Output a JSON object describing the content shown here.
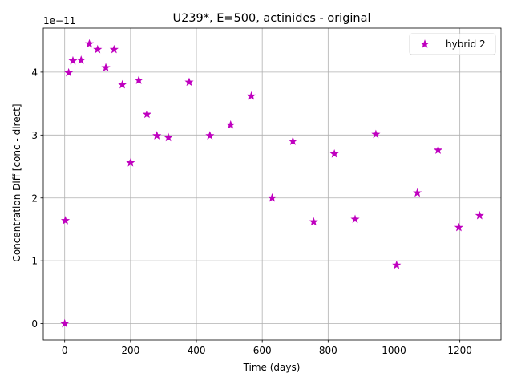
{
  "chart_data": {
    "type": "scatter",
    "title": "U239*, E=500, actinides - original",
    "xlabel": "Time (days)",
    "ylabel": "Concentration Diff [conc - direct]",
    "y_offset_label": "1e−11",
    "xlim": [
      -65,
      1325
    ],
    "ylim": [
      -2.6e-12,
      4.7e-11
    ],
    "x_ticks": [
      0,
      200,
      400,
      600,
      800,
      1000,
      1200
    ],
    "x_tick_labels": [
      "0",
      "200",
      "400",
      "600",
      "800",
      "1000",
      "1200"
    ],
    "y_ticks": [
      0,
      1e-11,
      2e-11,
      3e-11,
      4e-11
    ],
    "y_tick_labels": [
      "0",
      "1",
      "2",
      "3",
      "4"
    ],
    "grid": true,
    "legend_position": "top-right",
    "marker": "star",
    "series": [
      {
        "name": "hybrid 2",
        "color": "#bf00bf",
        "x": [
          0,
          2,
          12,
          25,
          50,
          75,
          100,
          125,
          150,
          175,
          200,
          225,
          250,
          280,
          315,
          378,
          441,
          504,
          567,
          630,
          693,
          756,
          819,
          882,
          945,
          1008,
          1071,
          1134,
          1197,
          1260
        ],
        "y": [
          0,
          1.64e-11,
          3.99e-11,
          4.18e-11,
          4.19e-11,
          4.45e-11,
          4.36e-11,
          4.07e-11,
          4.36e-11,
          3.8e-11,
          2.56e-11,
          3.87e-11,
          3.33e-11,
          2.99e-11,
          2.96e-11,
          3.84e-11,
          2.99e-11,
          3.16e-11,
          3.62e-11,
          2e-11,
          2.9e-11,
          1.62e-11,
          2.7e-11,
          1.66e-11,
          3.01e-11,
          9.3e-12,
          2.08e-11,
          2.76e-11,
          1.53e-11,
          1.72e-11
        ]
      }
    ]
  }
}
